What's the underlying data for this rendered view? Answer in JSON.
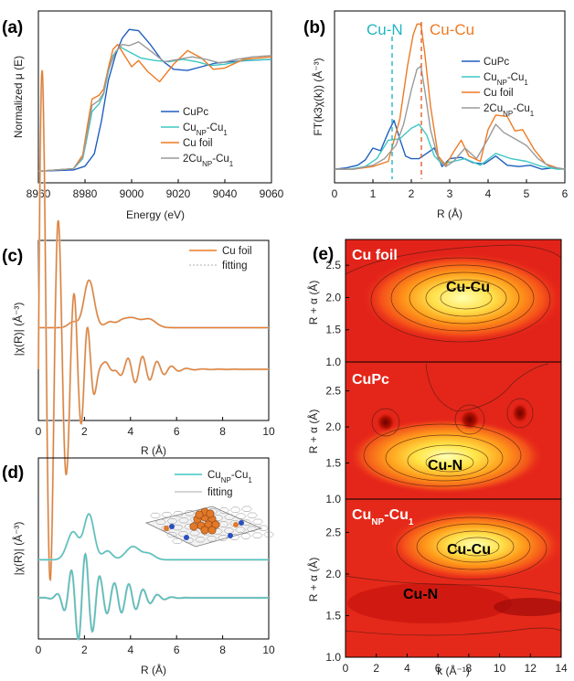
{
  "chart_data": [
    {
      "panel": "(a)",
      "type": "line",
      "xlabel": "Energy (eV)",
      "ylabel": "Normalized μ (E)",
      "xlim": [
        8960,
        9060
      ],
      "xticks": [
        "8960",
        "8980",
        "9000",
        "9020",
        "9040",
        "9060"
      ],
      "legend_position": "bottom-right",
      "colors": [
        "#1f5fbf",
        "#3fc7c2",
        "#ee7a22",
        "#9a9a9a"
      ],
      "series": [
        {
          "name": "CuPc",
          "x": [
            8960,
            8975,
            8980,
            8984,
            8987,
            8990,
            8993,
            8996,
            8999,
            9003,
            9008,
            9013,
            9018,
            9024,
            9030,
            9036,
            9042,
            9050,
            9060
          ],
          "y": [
            0.02,
            0.03,
            0.06,
            0.16,
            0.42,
            0.75,
            0.95,
            1.09,
            1.16,
            1.15,
            1.04,
            0.91,
            0.84,
            0.83,
            0.86,
            0.89,
            0.9,
            0.91,
            0.92
          ]
        },
        {
          "name": "CuNP-Cu1",
          "x": [
            8960,
            8975,
            8979,
            8981,
            8983,
            8986,
            8988,
            8990,
            8992,
            8995,
            8999,
            9004,
            9010,
            9016,
            9022,
            9028,
            9034,
            9040,
            9048,
            9060
          ],
          "y": [
            0.02,
            0.04,
            0.12,
            0.3,
            0.5,
            0.56,
            0.64,
            0.82,
            0.95,
            1.02,
            0.98,
            0.93,
            0.91,
            0.9,
            0.92,
            0.9,
            0.87,
            0.88,
            0.91,
            0.92
          ]
        },
        {
          "name": "Cu foil",
          "x": [
            8960,
            8975,
            8979,
            8981,
            8983,
            8986,
            8988,
            8990,
            8992,
            8994,
            8997,
            9000,
            9003,
            9007,
            9012,
            9018,
            9024,
            9030,
            9035,
            9040,
            9048,
            9060
          ],
          "y": [
            0.02,
            0.04,
            0.15,
            0.38,
            0.6,
            0.63,
            0.68,
            0.85,
            1.0,
            1.04,
            0.95,
            0.86,
            0.91,
            0.82,
            0.74,
            0.88,
            0.99,
            0.93,
            0.84,
            0.85,
            0.92,
            0.94
          ]
        },
        {
          "name": "2CuNP-Cu1",
          "x": [
            8960,
            8975,
            8979,
            8981,
            8983,
            8986,
            8988,
            8990,
            8993,
            8996,
            8999,
            9003,
            9008,
            9014,
            9020,
            9026,
            9032,
            9038,
            9045,
            9052,
            9060
          ],
          "y": [
            0.02,
            0.04,
            0.13,
            0.33,
            0.55,
            0.59,
            0.65,
            0.83,
            0.98,
            1.04,
            1.03,
            1.06,
            0.99,
            0.9,
            0.92,
            0.94,
            0.92,
            0.89,
            0.92,
            0.94,
            0.95
          ]
        }
      ]
    },
    {
      "panel": "(b)",
      "type": "line",
      "xlabel": "R (Å)",
      "ylabel": "FT(k3χ(k)) (Å⁻³)",
      "xlim": [
        0,
        6
      ],
      "xticks": [
        "0",
        "1",
        "2",
        "3",
        "4",
        "5",
        "6"
      ],
      "annotations": [
        {
          "text": "Cu-N",
          "x": 1.5,
          "color": "#22b5c0"
        },
        {
          "text": "Cu-Cu",
          "x": 2.25,
          "color": "#ee7a22"
        }
      ],
      "legend_position": "right",
      "colors": [
        "#1f5fbf",
        "#3fc7c2",
        "#ee7a22",
        "#9a9a9a"
      ],
      "series": [
        {
          "name": "CuPc",
          "x": [
            0,
            0.3,
            0.6,
            0.8,
            1.0,
            1.2,
            1.4,
            1.55,
            1.7,
            1.85,
            2.0,
            2.2,
            2.4,
            2.6,
            2.8,
            3.0,
            3.3,
            3.6,
            3.9,
            4.2,
            4.5,
            4.8,
            5.1,
            5.4,
            5.7,
            6.0
          ],
          "y": [
            0.02,
            0.03,
            0.05,
            0.09,
            0.18,
            0.16,
            0.3,
            0.39,
            0.25,
            0.12,
            0.1,
            0.1,
            0.14,
            0.18,
            0.04,
            0.1,
            0.11,
            0.07,
            0.06,
            0.12,
            0.05,
            0.04,
            0.05,
            0.02,
            0.03,
            0.02
          ]
        },
        {
          "name": "CuNP-Cu1",
          "x": [
            0,
            0.4,
            0.8,
            1.1,
            1.4,
            1.7,
            2.0,
            2.2,
            2.4,
            2.6,
            2.8,
            3.1,
            3.4,
            3.8,
            4.2,
            4.6,
            5.0,
            5.4,
            5.8,
            6.0
          ],
          "y": [
            0.02,
            0.02,
            0.04,
            0.1,
            0.24,
            0.25,
            0.33,
            0.36,
            0.28,
            0.12,
            0.06,
            0.08,
            0.1,
            0.05,
            0.14,
            0.1,
            0.08,
            0.04,
            0.02,
            0.02
          ]
        },
        {
          "name": "Cu foil",
          "x": [
            0,
            0.5,
            1.0,
            1.4,
            1.7,
            1.9,
            2.05,
            2.15,
            2.25,
            2.35,
            2.5,
            2.7,
            2.9,
            3.1,
            3.3,
            3.5,
            3.8,
            4.0,
            4.2,
            4.5,
            4.7,
            4.9,
            5.2,
            5.5,
            5.8,
            6.0
          ],
          "y": [
            0.02,
            0.02,
            0.04,
            0.08,
            0.4,
            0.8,
            1.04,
            1.12,
            1.12,
            0.9,
            0.5,
            0.12,
            0.05,
            0.15,
            0.24,
            0.12,
            0.08,
            0.32,
            0.43,
            0.42,
            0.31,
            0.32,
            0.17,
            0.06,
            0.03,
            0.02
          ]
        },
        {
          "name": "2CuNP-Cu1",
          "x": [
            0,
            0.5,
            1.0,
            1.3,
            1.6,
            1.8,
            2.0,
            2.15,
            2.25,
            2.35,
            2.5,
            2.7,
            2.9,
            3.1,
            3.4,
            3.7,
            4.0,
            4.2,
            4.4,
            4.7,
            5.0,
            5.3,
            5.6,
            6.0
          ],
          "y": [
            0.02,
            0.02,
            0.05,
            0.1,
            0.2,
            0.36,
            0.62,
            0.78,
            0.8,
            0.62,
            0.32,
            0.1,
            0.04,
            0.08,
            0.18,
            0.1,
            0.25,
            0.36,
            0.3,
            0.25,
            0.2,
            0.1,
            0.04,
            0.02
          ]
        }
      ]
    },
    {
      "panel": "(c)",
      "type": "line",
      "xlabel": "R (Å)",
      "ylabel": "|χ(R)| (Å⁻³)",
      "xlim": [
        0,
        10
      ],
      "xticks": [
        "0",
        "2",
        "4",
        "6",
        "8",
        "10"
      ],
      "legend_position": "top-right",
      "series": [
        {
          "name": "Cu foil",
          "color": "#ee7a22"
        },
        {
          "name": "fitting",
          "color": "#c9c9c9"
        }
      ]
    },
    {
      "panel": "(d)",
      "type": "line",
      "xlabel": "R (Å)",
      "ylabel": "|χ(R)| (Å⁻³)",
      "xlim": [
        0,
        10
      ],
      "xticks": [
        "0",
        "2",
        "4",
        "6",
        "8",
        "10"
      ],
      "legend_position": "top-right",
      "series": [
        {
          "name": "CuNP-Cu1",
          "color": "#3fc7c2"
        },
        {
          "name": "fitting",
          "color": "#c9c9c9"
        }
      ]
    },
    {
      "panel": "(e)",
      "type": "heatmap",
      "xlabel": "k (Å⁻¹)",
      "ylabel": "R + α (Å)",
      "xlim": [
        0,
        14
      ],
      "xticks": [
        "0",
        "2",
        "4",
        "6",
        "8",
        "10",
        "12",
        "14"
      ],
      "subpanels": [
        {
          "title": "Cu foil",
          "ylim": [
            1.0,
            2.9
          ],
          "yticks": [
            "1.0",
            "1.5",
            "2.0",
            "2.5"
          ],
          "labels": [
            {
              "text": "Cu-Cu",
              "k": 8.0,
              "r": 2.22
            }
          ]
        },
        {
          "title": "CuPc",
          "ylim": [
            1.0,
            2.9
          ],
          "yticks": [
            "1.0",
            "1.5",
            "2.0",
            "2.5"
          ],
          "labels": [
            {
              "text": "Cu-N",
              "k": 6.0,
              "r": 1.45
            }
          ]
        },
        {
          "title": "CuNP-Cu1",
          "ylim": [
            1.0,
            2.9
          ],
          "yticks": [
            "1.0",
            "1.5",
            "2.0",
            "2.5"
          ],
          "labels": [
            {
              "text": "Cu-Cu",
              "k": 8.0,
              "r": 2.2
            },
            {
              "text": "Cu-N",
              "k": 6.0,
              "r": 1.55
            }
          ]
        }
      ]
    }
  ],
  "labels": {
    "panel_a": "(a)",
    "panel_b": "(b)",
    "panel_c": "(c)",
    "panel_d": "(d)",
    "panel_e": "(e)",
    "cuNP": "Cu",
    "np_sub": "NP",
    "cu1": "-Cu",
    "one_sub": "1",
    "two": "2Cu",
    "fitting": "fitting",
    "cupc": "CuPc",
    "cufoil": "Cu foil"
  }
}
